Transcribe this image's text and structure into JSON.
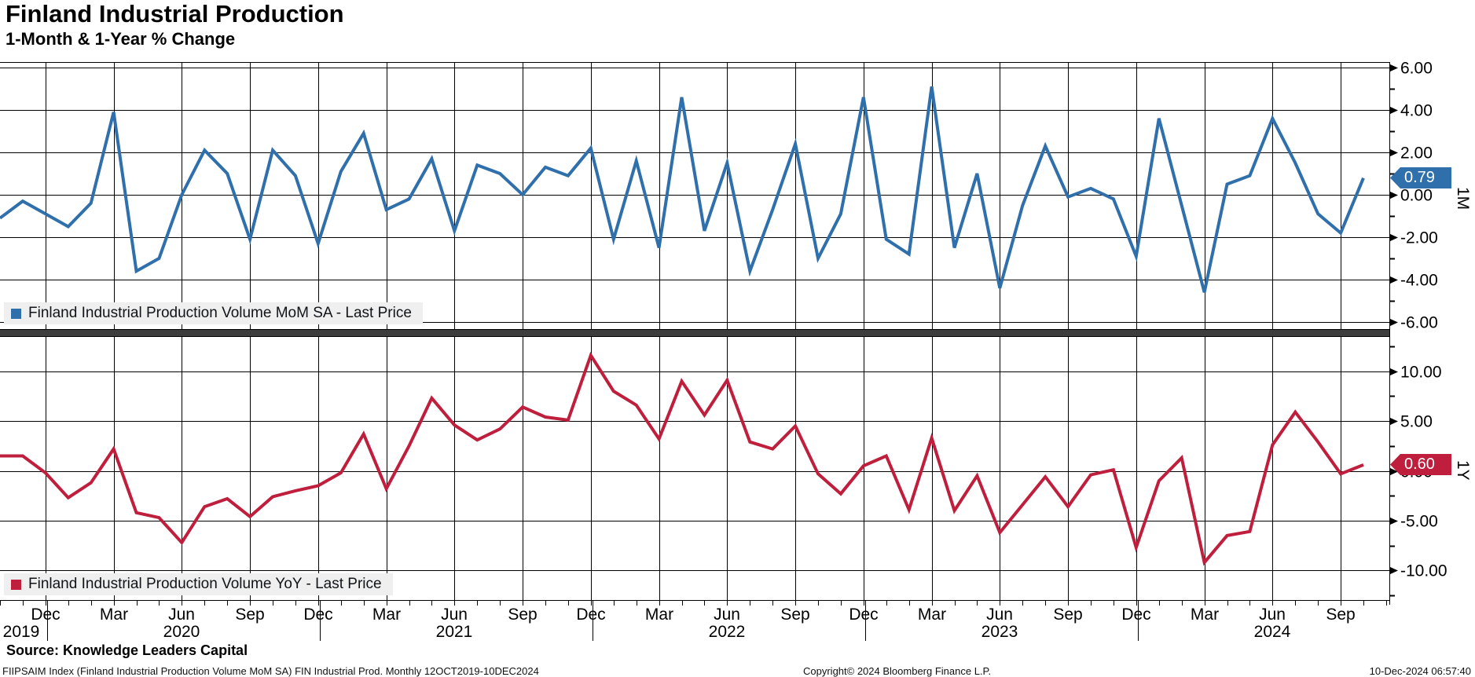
{
  "header": {
    "title": "Finland Industrial Production",
    "subtitle": "1-Month & 1-Year % Change"
  },
  "colors": {
    "mom": "#2f6fab",
    "yoy": "#bf1e3c",
    "separator": "#3d3d3d",
    "legend_bg": "#efefef",
    "grid": "#000000",
    "badge_text": "#ffffff"
  },
  "panels": {
    "mom": {
      "axis_name": "1M",
      "legend_label": "Finland Industrial Production Volume MoM SA - Last Price",
      "last_price": "0.79",
      "y_tick_labels": [
        "6.00",
        "4.00",
        "2.00",
        "0.00",
        "-2.00",
        "-4.00",
        "-6.00"
      ],
      "y_tick_values": [
        6,
        4,
        2,
        0,
        -2,
        -4,
        -6
      ],
      "y_minor_values": [
        5,
        3,
        1,
        -1,
        -3,
        -5
      ]
    },
    "yoy": {
      "axis_name": "1Y",
      "legend_label": "Finland Industrial Production Volume YoY - Last Price",
      "last_price": "0.60",
      "y_tick_labels": [
        "10.00",
        "5.00",
        "0.00",
        "-5.00",
        "-10.00"
      ],
      "y_tick_values": [
        10,
        5,
        0,
        -5,
        -10
      ],
      "y_minor_values": [
        12.5,
        7.5,
        2.5,
        -2.5,
        -7.5,
        -12.5
      ]
    }
  },
  "x_axis": {
    "quarter_labels": [
      "Dec",
      "Mar",
      "Jun",
      "Sep",
      "Dec",
      "Mar",
      "Jun",
      "Sep",
      "Dec",
      "Mar",
      "Jun",
      "Sep",
      "Dec",
      "Mar",
      "Jun",
      "Sep",
      "Dec",
      "Mar",
      "Jun",
      "Sep"
    ],
    "first_label_month_index": 2,
    "label_step": 3,
    "year_labels": [
      "2019",
      "2020",
      "2021",
      "2022",
      "2023",
      "2024"
    ]
  },
  "footer": {
    "source": "Source: Knowledge Leaders Capital",
    "left": "FIIPSAIM Index (Finland Industrial Production Volume MoM SA) FIN Industrial Prod.  Monthly 12OCT2019-10DEC2024",
    "copyright": "Copyright© 2024 Bloomberg Finance L.P.",
    "datetime": "10-Dec-2024 06:57:40"
  },
  "chart_data": [
    {
      "type": "line",
      "name": "Finland Industrial Production Volume MoM SA",
      "panel": "1M",
      "color": "#2f6fab",
      "ylim": [
        -6.5,
        6.5
      ],
      "y_gridlines": [
        6,
        4,
        2,
        0,
        -2,
        -4,
        -6
      ],
      "legend_position": "bottom-left-inside",
      "grid": true,
      "last_price": 0.79,
      "x": [
        "2019-10",
        "2019-11",
        "2019-12",
        "2020-01",
        "2020-02",
        "2020-03",
        "2020-04",
        "2020-05",
        "2020-06",
        "2020-07",
        "2020-08",
        "2020-09",
        "2020-10",
        "2020-11",
        "2020-12",
        "2021-01",
        "2021-02",
        "2021-03",
        "2021-04",
        "2021-05",
        "2021-06",
        "2021-07",
        "2021-08",
        "2021-09",
        "2021-10",
        "2021-11",
        "2021-12",
        "2022-01",
        "2022-02",
        "2022-03",
        "2022-04",
        "2022-05",
        "2022-06",
        "2022-07",
        "2022-08",
        "2022-09",
        "2022-10",
        "2022-11",
        "2022-12",
        "2023-01",
        "2023-02",
        "2023-03",
        "2023-04",
        "2023-05",
        "2023-06",
        "2023-07",
        "2023-08",
        "2023-09",
        "2023-10",
        "2023-11",
        "2023-12",
        "2024-01",
        "2024-02",
        "2024-03",
        "2024-04",
        "2024-05",
        "2024-06",
        "2024-07",
        "2024-08",
        "2024-09",
        "2024-10"
      ],
      "values": [
        -1.1,
        -0.3,
        -0.9,
        -1.5,
        -0.4,
        3.9,
        -3.6,
        -3.0,
        0.0,
        2.1,
        1.0,
        -2.1,
        2.1,
        0.9,
        -2.3,
        1.1,
        2.9,
        -0.7,
        -0.2,
        1.7,
        -1.7,
        1.4,
        1.0,
        0.0,
        1.3,
        0.9,
        2.2,
        -2.1,
        1.6,
        -2.5,
        4.6,
        -1.7,
        1.5,
        -3.6,
        -0.7,
        2.4,
        -3.0,
        -0.9,
        4.6,
        -2.1,
        -2.8,
        5.1,
        -2.5,
        1.0,
        -4.4,
        -0.5,
        2.3,
        -0.1,
        0.3,
        -0.2,
        -2.9,
        3.6,
        -0.5,
        -4.6,
        0.5,
        0.9,
        3.6,
        1.5,
        -0.9,
        -1.8,
        0.79
      ]
    },
    {
      "type": "line",
      "name": "Finland Industrial Production Volume YoY",
      "panel": "1Y",
      "color": "#bf1e3c",
      "ylim": [
        -13,
        13.5
      ],
      "y_gridlines": [
        10,
        5,
        0,
        -5,
        -10
      ],
      "legend_position": "bottom-left-inside",
      "grid": true,
      "last_price": 0.6,
      "x": [
        "2019-10",
        "2019-11",
        "2019-12",
        "2020-01",
        "2020-02",
        "2020-03",
        "2020-04",
        "2020-05",
        "2020-06",
        "2020-07",
        "2020-08",
        "2020-09",
        "2020-10",
        "2020-11",
        "2020-12",
        "2021-01",
        "2021-02",
        "2021-03",
        "2021-04",
        "2021-05",
        "2021-06",
        "2021-07",
        "2021-08",
        "2021-09",
        "2021-10",
        "2021-11",
        "2021-12",
        "2022-01",
        "2022-02",
        "2022-03",
        "2022-04",
        "2022-05",
        "2022-06",
        "2022-07",
        "2022-08",
        "2022-09",
        "2022-10",
        "2022-11",
        "2022-12",
        "2023-01",
        "2023-02",
        "2023-03",
        "2023-04",
        "2023-05",
        "2023-06",
        "2023-07",
        "2023-08",
        "2023-09",
        "2023-10",
        "2023-11",
        "2023-12",
        "2024-01",
        "2024-02",
        "2024-03",
        "2024-04",
        "2024-05",
        "2024-06",
        "2024-07",
        "2024-08",
        "2024-09",
        "2024-10"
      ],
      "values": [
        1.5,
        1.5,
        -0.2,
        -2.7,
        -1.2,
        2.2,
        -4.2,
        -4.7,
        -7.2,
        -3.6,
        -2.8,
        -4.6,
        -2.6,
        -2.0,
        -1.5,
        -0.2,
        3.7,
        -1.8,
        2.5,
        7.3,
        4.6,
        3.1,
        4.2,
        6.4,
        5.4,
        5.1,
        11.6,
        8.0,
        6.6,
        3.2,
        9.0,
        5.6,
        9.1,
        2.9,
        2.2,
        4.5,
        -0.3,
        -2.3,
        0.5,
        1.5,
        -3.9,
        3.3,
        -4.0,
        -0.5,
        -6.2,
        -3.4,
        -0.6,
        -3.6,
        -0.4,
        0.1,
        -7.7,
        -1.0,
        1.3,
        -9.2,
        -6.5,
        -6.1,
        2.6,
        5.9,
        2.9,
        -0.3,
        0.6
      ]
    }
  ]
}
